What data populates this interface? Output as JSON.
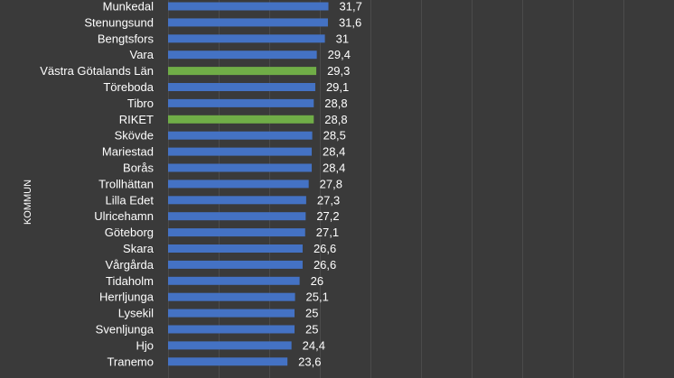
{
  "chart_data": {
    "type": "bar",
    "orientation": "horizontal",
    "ylabel": "KOMMUN",
    "xlim": [
      0,
      100
    ],
    "grid": true,
    "colors": {
      "default": "#4472c4",
      "highlight": "#70ad47",
      "background": "#3a3a3a"
    },
    "highlighted": [
      "Västra Götalands Län",
      "RIKET"
    ],
    "categories": [
      "Munkedal",
      "Stenungsund",
      "Bengtsfors",
      "Vara",
      "Västra Götalands Län",
      "Töreboda",
      "Tibro",
      "RIKET",
      "Skövde",
      "Mariestad",
      "Borås",
      "Trollhättan",
      "Lilla Edet",
      "Ulricehamn",
      "Göteborg",
      "Skara",
      "Vårgårda",
      "Tidaholm",
      "Herrljunga",
      "Lysekil",
      "Svenljunga",
      "Hjo",
      "Tranemo"
    ],
    "values": [
      31.7,
      31.6,
      31,
      29.4,
      29.3,
      29.1,
      28.8,
      28.8,
      28.5,
      28.4,
      28.4,
      27.8,
      27.3,
      27.2,
      27.1,
      26.6,
      26.6,
      26,
      25.1,
      25,
      25,
      24.4,
      23.6
    ],
    "value_labels": [
      "31,7",
      "31,6",
      "31",
      "29,4",
      "29,3",
      "29,1",
      "28,8",
      "28,8",
      "28,5",
      "28,4",
      "28,4",
      "27,8",
      "27,3",
      "27,2",
      "27,1",
      "26,6",
      "26,6",
      "26",
      "25,1",
      "25",
      "25",
      "24,4",
      "23,6"
    ]
  }
}
